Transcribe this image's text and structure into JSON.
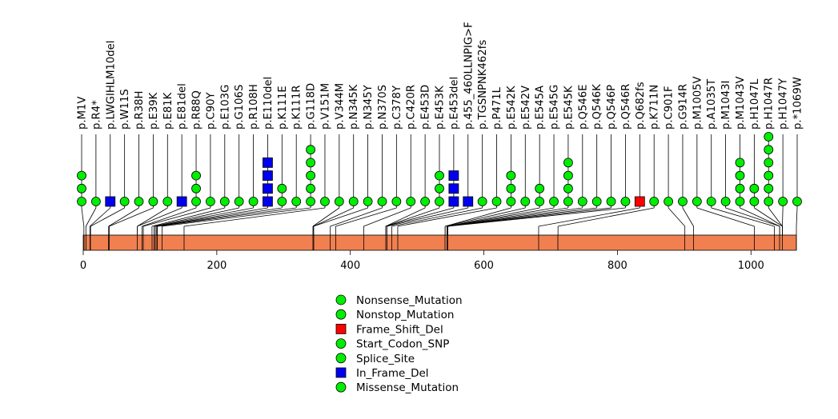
{
  "chart_data": {
    "type": "lollipop",
    "protein_length": 1068,
    "xlim": [
      0,
      1068
    ],
    "x_ticks": [
      0,
      200,
      400,
      600,
      800,
      1000
    ],
    "x_tick_labels": [
      "0",
      "200",
      "400",
      "600",
      "800",
      "1000"
    ],
    "colors": {
      "domain_fill": "#f08050",
      "green": "#00ee00",
      "red": "#ff0000",
      "blue": "#0000ee",
      "line": "#000000"
    },
    "legend": [
      {
        "label": "Nonsense_Mutation",
        "color": "#00ee00",
        "shape": "circle"
      },
      {
        "label": "Nonstop_Mutation",
        "color": "#00ee00",
        "shape": "circle"
      },
      {
        "label": "Frame_Shift_Del",
        "color": "#ff0000",
        "shape": "square"
      },
      {
        "label": "Start_Codon_SNP",
        "color": "#00ee00",
        "shape": "circle"
      },
      {
        "label": "Splice_Site",
        "color": "#00ee00",
        "shape": "circle"
      },
      {
        "label": "In_Frame_Del",
        "color": "#0000ee",
        "shape": "square"
      },
      {
        "label": "Missense_Mutation",
        "color": "#00ee00",
        "shape": "circle"
      }
    ],
    "mutations": [
      {
        "label": "p.M1V",
        "pos": 1,
        "count": 3,
        "color": "#00ee00",
        "shape": "circle"
      },
      {
        "label": "p.R4*",
        "pos": 4,
        "count": 1,
        "color": "#00ee00",
        "shape": "circle"
      },
      {
        "label": "p.LWGIHLM10del",
        "pos": 10,
        "count": 1,
        "color": "#0000ee",
        "shape": "square"
      },
      {
        "label": "p.W11S",
        "pos": 11,
        "count": 1,
        "color": "#00ee00",
        "shape": "circle"
      },
      {
        "label": "p.R38H",
        "pos": 38,
        "count": 1,
        "color": "#00ee00",
        "shape": "circle"
      },
      {
        "label": "p.E39K",
        "pos": 39,
        "count": 1,
        "color": "#00ee00",
        "shape": "circle"
      },
      {
        "label": "p.E81K",
        "pos": 81,
        "count": 1,
        "color": "#00ee00",
        "shape": "circle"
      },
      {
        "label": "p.E81del",
        "pos": 81,
        "count": 1,
        "color": "#0000ee",
        "shape": "square"
      },
      {
        "label": "p.R88Q",
        "pos": 88,
        "count": 3,
        "color": "#00ee00",
        "shape": "circle"
      },
      {
        "label": "p.C90Y",
        "pos": 90,
        "count": 1,
        "color": "#00ee00",
        "shape": "circle"
      },
      {
        "label": "p.E103G",
        "pos": 103,
        "count": 1,
        "color": "#00ee00",
        "shape": "circle"
      },
      {
        "label": "p.G106S",
        "pos": 106,
        "count": 1,
        "color": "#00ee00",
        "shape": "circle"
      },
      {
        "label": "p.R108H",
        "pos": 108,
        "count": 1,
        "color": "#00ee00",
        "shape": "circle"
      },
      {
        "label": "p.E110del",
        "pos": 110,
        "count": 4,
        "color": "#0000ee",
        "shape": "square"
      },
      {
        "label": "p.K111E",
        "pos": 111,
        "count": 2,
        "color": "#00ee00",
        "shape": "circle"
      },
      {
        "label": "p.K111R",
        "pos": 111,
        "count": 1,
        "color": "#00ee00",
        "shape": "circle"
      },
      {
        "label": "p.G118D",
        "pos": 118,
        "count": 5,
        "color": "#00ee00",
        "shape": "circle"
      },
      {
        "label": "p.V151M",
        "pos": 151,
        "count": 1,
        "color": "#00ee00",
        "shape": "circle"
      },
      {
        "label": "p.V344M",
        "pos": 344,
        "count": 1,
        "color": "#00ee00",
        "shape": "circle"
      },
      {
        "label": "p.N345K",
        "pos": 345,
        "count": 1,
        "color": "#00ee00",
        "shape": "circle"
      },
      {
        "label": "p.N345Y",
        "pos": 345,
        "count": 1,
        "color": "#00ee00",
        "shape": "circle"
      },
      {
        "label": "p.N370S",
        "pos": 370,
        "count": 1,
        "color": "#00ee00",
        "shape": "circle"
      },
      {
        "label": "p.C378Y",
        "pos": 378,
        "count": 1,
        "color": "#00ee00",
        "shape": "circle"
      },
      {
        "label": "p.C420R",
        "pos": 420,
        "count": 1,
        "color": "#00ee00",
        "shape": "circle"
      },
      {
        "label": "p.E453D",
        "pos": 453,
        "count": 1,
        "color": "#00ee00",
        "shape": "circle"
      },
      {
        "label": "p.E453K",
        "pos": 453,
        "count": 3,
        "color": "#00ee00",
        "shape": "circle"
      },
      {
        "label": "p.E453del",
        "pos": 453,
        "count": 3,
        "color": "#0000ee",
        "shape": "square"
      },
      {
        "label": "p.455_460LLNPIG>F",
        "pos": 455,
        "count": 1,
        "color": "#0000ee",
        "shape": "square"
      },
      {
        "label": "p.TGSNPNK462fs",
        "pos": 462,
        "count": 1,
        "color": "#00ee00",
        "shape": "circle"
      },
      {
        "label": "p.P471L",
        "pos": 471,
        "count": 1,
        "color": "#00ee00",
        "shape": "circle"
      },
      {
        "label": "p.E542K",
        "pos": 542,
        "count": 3,
        "color": "#00ee00",
        "shape": "circle"
      },
      {
        "label": "p.E542V",
        "pos": 542,
        "count": 1,
        "color": "#00ee00",
        "shape": "circle"
      },
      {
        "label": "p.E545A",
        "pos": 545,
        "count": 2,
        "color": "#00ee00",
        "shape": "circle"
      },
      {
        "label": "p.E545G",
        "pos": 545,
        "count": 1,
        "color": "#00ee00",
        "shape": "circle"
      },
      {
        "label": "p.E545K",
        "pos": 545,
        "count": 4,
        "color": "#00ee00",
        "shape": "circle"
      },
      {
        "label": "p.Q546E",
        "pos": 546,
        "count": 1,
        "color": "#00ee00",
        "shape": "circle"
      },
      {
        "label": "p.Q546K",
        "pos": 546,
        "count": 1,
        "color": "#00ee00",
        "shape": "circle"
      },
      {
        "label": "p.Q546P",
        "pos": 546,
        "count": 1,
        "color": "#00ee00",
        "shape": "circle"
      },
      {
        "label": "p.Q546R",
        "pos": 546,
        "count": 1,
        "color": "#00ee00",
        "shape": "circle"
      },
      {
        "label": "p.Q682fs",
        "pos": 682,
        "count": 1,
        "color": "#ff0000",
        "shape": "square"
      },
      {
        "label": "p.K711N",
        "pos": 711,
        "count": 1,
        "color": "#00ee00",
        "shape": "circle"
      },
      {
        "label": "p.C901F",
        "pos": 901,
        "count": 1,
        "color": "#00ee00",
        "shape": "circle"
      },
      {
        "label": "p.G914R",
        "pos": 914,
        "count": 1,
        "color": "#00ee00",
        "shape": "circle"
      },
      {
        "label": "p.M1005V",
        "pos": 1005,
        "count": 1,
        "color": "#00ee00",
        "shape": "circle"
      },
      {
        "label": "p.A1035T",
        "pos": 1035,
        "count": 1,
        "color": "#00ee00",
        "shape": "circle"
      },
      {
        "label": "p.M1043I",
        "pos": 1043,
        "count": 1,
        "color": "#00ee00",
        "shape": "circle"
      },
      {
        "label": "p.M1043V",
        "pos": 1043,
        "count": 4,
        "color": "#00ee00",
        "shape": "circle"
      },
      {
        "label": "p.H1047L",
        "pos": 1047,
        "count": 2,
        "color": "#00ee00",
        "shape": "circle"
      },
      {
        "label": "p.H1047R",
        "pos": 1047,
        "count": 6,
        "color": "#00ee00",
        "shape": "circle"
      },
      {
        "label": "p.H1047Y",
        "pos": 1047,
        "count": 1,
        "color": "#00ee00",
        "shape": "circle"
      },
      {
        "label": "p.*1069W",
        "pos": 1068,
        "count": 1,
        "color": "#00ee00",
        "shape": "circle"
      }
    ]
  }
}
